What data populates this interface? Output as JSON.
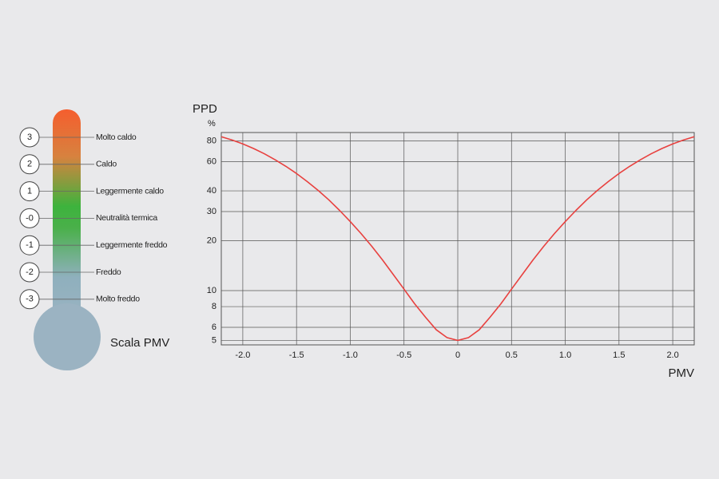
{
  "thermometer": {
    "title": "Scala PMV",
    "levels": [
      {
        "value": "3",
        "label": "Molto caldo"
      },
      {
        "value": "2",
        "label": "Caldo"
      },
      {
        "value": "1",
        "label": "Leggermente caldo"
      },
      {
        "value": "-0",
        "label": "Neutralità termica"
      },
      {
        "value": "-1",
        "label": "Leggermente freddo"
      },
      {
        "value": "-2",
        "label": "Freddo"
      },
      {
        "value": "-3",
        "label": "Molto freddo"
      }
    ]
  },
  "chart_data": {
    "type": "line",
    "y_label": "PPD",
    "y_unit": "%",
    "x_label": "PMV",
    "log_y": true,
    "grid": true,
    "x": [
      -2.2,
      -2.1,
      -2.0,
      -1.9,
      -1.8,
      -1.7,
      -1.6,
      -1.5,
      -1.4,
      -1.3,
      -1.2,
      -1.1,
      -1.0,
      -0.9,
      -0.8,
      -0.7,
      -0.6,
      -0.5,
      -0.4,
      -0.3,
      -0.2,
      -0.1,
      0,
      0.1,
      0.2,
      0.3,
      0.4,
      0.5,
      0.6,
      0.7,
      0.8,
      0.9,
      1.0,
      1.1,
      1.2,
      1.3,
      1.4,
      1.5,
      1.6,
      1.7,
      1.8,
      1.9,
      2.0,
      2.1,
      2.2
    ],
    "series": [
      {
        "color": "#e8413f",
        "values": [
          84.9,
          81.1,
          76.8,
          72.1,
          67.0,
          61.7,
          56.3,
          50.9,
          45.5,
          40.3,
          35.3,
          30.5,
          26.1,
          22.1,
          18.5,
          15.3,
          12.5,
          10.2,
          8.3,
          6.9,
          5.8,
          5.2,
          5.0,
          5.2,
          5.8,
          6.9,
          8.3,
          10.2,
          12.5,
          15.3,
          18.5,
          22.1,
          26.1,
          30.5,
          35.3,
          40.3,
          45.5,
          50.9,
          56.3,
          61.7,
          67.0,
          72.1,
          76.8,
          81.1,
          84.9
        ]
      }
    ],
    "xlim": [
      -2.2,
      2.2
    ],
    "ylim": [
      4.7,
      90
    ],
    "xticks": [
      {
        "value": -2,
        "label": "-2.0"
      },
      {
        "value": -1.5,
        "label": "-1.5"
      },
      {
        "value": -1,
        "label": "-1.0"
      },
      {
        "value": -0.5,
        "label": "-0.5"
      },
      0,
      {
        "value": 0.5,
        "label": "0.5"
      },
      {
        "value": 1,
        "label": "1.0"
      },
      {
        "value": 1.5,
        "label": "1.5"
      },
      {
        "value": 2,
        "label": "2.0"
      }
    ],
    "yticks": [
      5,
      6,
      8,
      10,
      20,
      30,
      40,
      60,
      80
    ]
  }
}
